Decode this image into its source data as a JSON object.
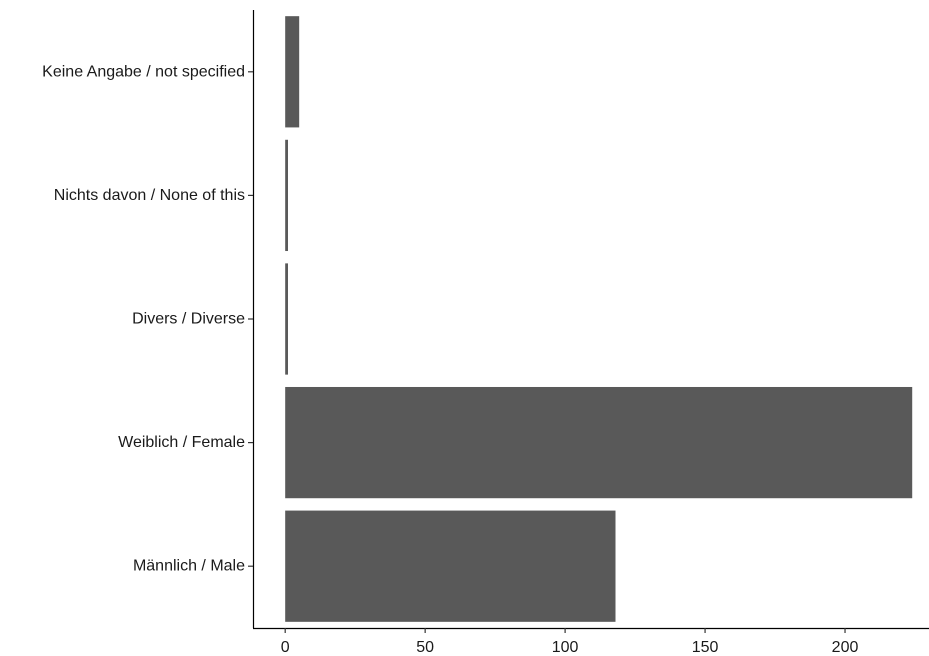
{
  "chart_data": {
    "type": "bar",
    "orientation": "horizontal",
    "title": "",
    "xlabel": "",
    "ylabel": "",
    "categories": [
      "Männlich / Male",
      "Weiblich / Female",
      "Divers / Diverse",
      "Nichts davon / None of this",
      "Keine Angabe / not specified"
    ],
    "values": [
      118,
      224,
      1,
      1,
      5
    ],
    "xlim": [
      -11.5,
      230
    ],
    "xticks": [
      0,
      50,
      100,
      150,
      200
    ],
    "xtick_labels": [
      "0",
      "50",
      "100",
      "150",
      "200"
    ],
    "grid": false,
    "bar_color": "#595959"
  }
}
